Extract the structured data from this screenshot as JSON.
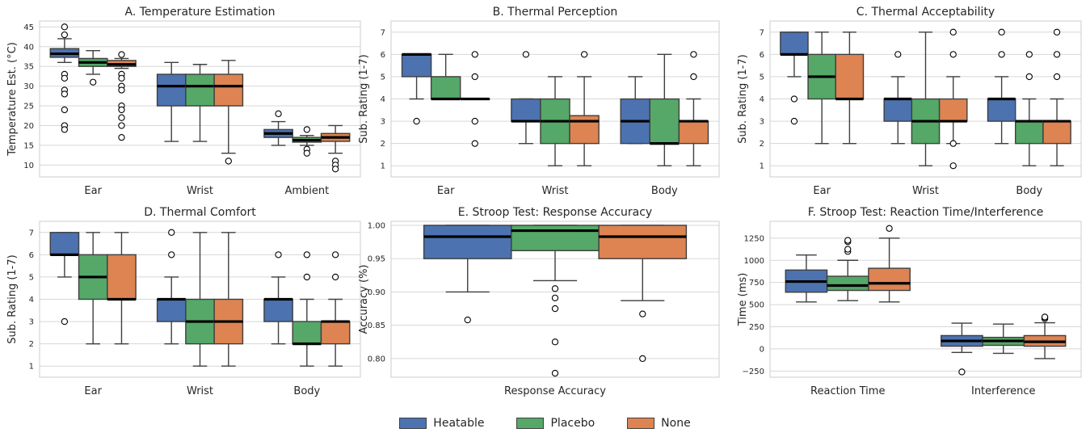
{
  "colors": {
    "Heatable": "#4c72b0",
    "Placebo": "#55a868",
    "None": "#dd8452"
  },
  "legend": [
    {
      "name": "Heatable",
      "color": "#4c72b0"
    },
    {
      "name": "Placebo",
      "color": "#55a868"
    },
    {
      "name": "None",
      "color": "#dd8452"
    }
  ],
  "chart_data": [
    {
      "type": "box",
      "title": "A. Temperature Estimation",
      "ylabel": "Temperature Est. (°C)",
      "ylim": [
        7,
        46.5
      ],
      "yticks": [
        10,
        15,
        20,
        25,
        30,
        35,
        40,
        45
      ],
      "grid": true,
      "categories": [
        "Ear",
        "Wrist",
        "Ambient"
      ],
      "series": [
        {
          "name": "Heatable",
          "boxes": [
            {
              "whislo": 36,
              "q1": 37.3,
              "med": 38.2,
              "q3": 39.5,
              "whishi": 42,
              "fliers": [
                43,
                45,
                33,
                32,
                29,
                28,
                24,
                20,
                19
              ]
            },
            {
              "whislo": 16,
              "q1": 25,
              "med": 30,
              "q3": 33,
              "whishi": 36,
              "fliers": []
            },
            {
              "whislo": 15,
              "q1": 17,
              "med": 18,
              "q3": 19,
              "whishi": 21,
              "fliers": [
                23
              ]
            }
          ]
        },
        {
          "name": "Placebo",
          "boxes": [
            {
              "whislo": 33,
              "q1": 35,
              "med": 36,
              "q3": 37,
              "whishi": 39,
              "fliers": [
                31
              ]
            },
            {
              "whislo": 16,
              "q1": 25,
              "med": 30,
              "q3": 33,
              "whishi": 35.5,
              "fliers": []
            },
            {
              "whislo": 15,
              "q1": 15.8,
              "med": 16.3,
              "q3": 17,
              "whishi": 17.5,
              "fliers": [
                19,
                14,
                13
              ]
            }
          ]
        },
        {
          "name": "None",
          "boxes": [
            {
              "whislo": 34.5,
              "q1": 35,
              "med": 35.5,
              "q3": 36.5,
              "whishi": 37,
              "fliers": [
                38,
                33,
                32,
                30,
                29,
                25,
                24,
                22,
                20,
                17
              ]
            },
            {
              "whislo": 13,
              "q1": 25,
              "med": 30,
              "q3": 33,
              "whishi": 36.5,
              "fliers": [
                11
              ]
            },
            {
              "whislo": 13,
              "q1": 16,
              "med": 17,
              "q3": 18,
              "whishi": 20,
              "fliers": [
                11,
                10,
                9
              ]
            }
          ]
        }
      ]
    },
    {
      "type": "box",
      "title": "B. Thermal Perception",
      "ylabel": "Sub. Rating (1-7)",
      "ylim": [
        0.5,
        7.5
      ],
      "yticks": [
        1,
        2,
        3,
        4,
        5,
        6,
        7
      ],
      "grid": true,
      "categories": [
        "Ear",
        "Wrist",
        "Body"
      ],
      "series": [
        {
          "name": "Heatable",
          "boxes": [
            {
              "whislo": 4,
              "q1": 5,
              "med": 6,
              "q3": 6,
              "whishi": 6,
              "fliers": [
                3
              ]
            },
            {
              "whislo": 2,
              "q1": 3,
              "med": 3,
              "q3": 4,
              "whishi": 4,
              "fliers": [
                6
              ]
            },
            {
              "whislo": 2,
              "q1": 2,
              "med": 3,
              "q3": 4,
              "whishi": 5,
              "fliers": []
            }
          ]
        },
        {
          "name": "Placebo",
          "boxes": [
            {
              "whislo": 4,
              "q1": 4,
              "med": 4,
              "q3": 5,
              "whishi": 6,
              "fliers": []
            },
            {
              "whislo": 1,
              "q1": 2,
              "med": 3,
              "q3": 4,
              "whishi": 5,
              "fliers": []
            },
            {
              "whislo": 1,
              "q1": 2,
              "med": 2,
              "q3": 4,
              "whishi": 6,
              "fliers": []
            }
          ]
        },
        {
          "name": "None",
          "boxes": [
            {
              "whislo": 4,
              "q1": 4,
              "med": 4,
              "q3": 4,
              "whishi": 4,
              "fliers": [
                6,
                5,
                3,
                2
              ]
            },
            {
              "whislo": 1,
              "q1": 2,
              "med": 3,
              "q3": 3.25,
              "whishi": 5,
              "fliers": [
                6
              ]
            },
            {
              "whislo": 1,
              "q1": 2,
              "med": 3,
              "q3": 3,
              "whishi": 4,
              "fliers": [
                6,
                5
              ]
            }
          ]
        }
      ]
    },
    {
      "type": "box",
      "title": "C. Thermal Acceptability",
      "ylabel": "Sub. Rating (1-7)",
      "ylim": [
        0.5,
        7.5
      ],
      "yticks": [
        1,
        2,
        3,
        4,
        5,
        6,
        7
      ],
      "grid": true,
      "categories": [
        "Ear",
        "Wrist",
        "Body"
      ],
      "series": [
        {
          "name": "Heatable",
          "boxes": [
            {
              "whislo": 5,
              "q1": 6,
              "med": 6,
              "q3": 7,
              "whishi": 7,
              "fliers": [
                4,
                3
              ]
            },
            {
              "whislo": 2,
              "q1": 3,
              "med": 4,
              "q3": 4,
              "whishi": 5,
              "fliers": [
                6
              ]
            },
            {
              "whislo": 2,
              "q1": 3,
              "med": 4,
              "q3": 4,
              "whishi": 5,
              "fliers": [
                7,
                6
              ]
            }
          ]
        },
        {
          "name": "Placebo",
          "boxes": [
            {
              "whislo": 2,
              "q1": 4,
              "med": 5,
              "q3": 6,
              "whishi": 7,
              "fliers": []
            },
            {
              "whislo": 1,
              "q1": 2,
              "med": 3,
              "q3": 4,
              "whishi": 7,
              "fliers": []
            },
            {
              "whislo": 1,
              "q1": 2,
              "med": 3,
              "q3": 3,
              "whishi": 4,
              "fliers": [
                6,
                5
              ]
            }
          ]
        },
        {
          "name": "None",
          "boxes": [
            {
              "whislo": 2,
              "q1": 4,
              "med": 4,
              "q3": 6,
              "whishi": 7,
              "fliers": []
            },
            {
              "whislo": 2,
              "q1": 3,
              "med": 3,
              "q3": 4,
              "whishi": 5,
              "fliers": [
                7,
                6,
                2,
                1
              ]
            },
            {
              "whislo": 1,
              "q1": 2,
              "med": 3,
              "q3": 3,
              "whishi": 4,
              "fliers": [
                7,
                6,
                5
              ]
            }
          ]
        }
      ]
    },
    {
      "type": "box",
      "title": "D. Thermal Comfort",
      "ylabel": "Sub. Rating (1-7)",
      "ylim": [
        0.5,
        7.5
      ],
      "yticks": [
        1,
        2,
        3,
        4,
        5,
        6,
        7
      ],
      "grid": true,
      "categories": [
        "Ear",
        "Wrist",
        "Body"
      ],
      "series": [
        {
          "name": "Heatable",
          "boxes": [
            {
              "whislo": 5,
              "q1": 6,
              "med": 6,
              "q3": 7,
              "whishi": 7,
              "fliers": [
                3
              ]
            },
            {
              "whislo": 2,
              "q1": 3,
              "med": 4,
              "q3": 4,
              "whishi": 5,
              "fliers": [
                7,
                6
              ]
            },
            {
              "whislo": 2,
              "q1": 3,
              "med": 4,
              "q3": 4,
              "whishi": 5,
              "fliers": [
                6
              ]
            }
          ]
        },
        {
          "name": "Placebo",
          "boxes": [
            {
              "whislo": 2,
              "q1": 4,
              "med": 5,
              "q3": 6,
              "whishi": 7,
              "fliers": []
            },
            {
              "whislo": 1,
              "q1": 2,
              "med": 3,
              "q3": 4,
              "whishi": 7,
              "fliers": []
            },
            {
              "whislo": 1,
              "q1": 2,
              "med": 2,
              "q3": 3,
              "whishi": 4,
              "fliers": [
                6,
                5
              ]
            }
          ]
        },
        {
          "name": "None",
          "boxes": [
            {
              "whislo": 2,
              "q1": 4,
              "med": 4,
              "q3": 6,
              "whishi": 7,
              "fliers": []
            },
            {
              "whislo": 1,
              "q1": 2,
              "med": 3,
              "q3": 4,
              "whishi": 7,
              "fliers": []
            },
            {
              "whislo": 1,
              "q1": 2,
              "med": 3,
              "q3": 3,
              "whishi": 4,
              "fliers": [
                6,
                5
              ]
            }
          ]
        }
      ]
    },
    {
      "type": "box",
      "title": "E. Stroop Test: Response Accuracy",
      "ylabel": "Accuracy (%)",
      "ylim": [
        0.772,
        1.006
      ],
      "yticks": [
        0.8,
        0.85,
        0.9,
        0.95,
        1.0
      ],
      "yticklabels": [
        "0.80",
        "0.85",
        "0.90",
        "0.95",
        "1.00"
      ],
      "grid": true,
      "categories": [
        "Response Accuracy"
      ],
      "series": [
        {
          "name": "Heatable",
          "boxes": [
            {
              "whislo": 0.9,
              "q1": 0.95,
              "med": 0.983,
              "q3": 1.0,
              "whishi": 1.0,
              "fliers": [
                0.858
              ]
            }
          ]
        },
        {
          "name": "Placebo",
          "boxes": [
            {
              "whislo": 0.917,
              "q1": 0.962,
              "med": 0.992,
              "q3": 1.0,
              "whishi": 1.0,
              "fliers": [
                0.905,
                0.891,
                0.875,
                0.825,
                0.778
              ]
            }
          ]
        },
        {
          "name": "None",
          "boxes": [
            {
              "whislo": 0.887,
              "q1": 0.95,
              "med": 0.983,
              "q3": 1.0,
              "whishi": 1.0,
              "fliers": [
                0.867,
                0.8
              ]
            }
          ]
        }
      ]
    },
    {
      "type": "box",
      "title": "F. Stroop Test: Reaction Time/Interference",
      "ylabel": "Time (ms)",
      "ylim": [
        -320,
        1440
      ],
      "yticks": [
        -250,
        0,
        250,
        500,
        750,
        1000,
        1250
      ],
      "grid": true,
      "categories": [
        "Reaction Time",
        "Interference"
      ],
      "series": [
        {
          "name": "Heatable",
          "boxes": [
            {
              "whislo": 530,
              "q1": 640,
              "med": 760,
              "q3": 890,
              "whishi": 1060,
              "fliers": []
            },
            {
              "whislo": -40,
              "q1": 30,
              "med": 90,
              "q3": 150,
              "whishi": 290,
              "fliers": [
                -260
              ]
            }
          ]
        },
        {
          "name": "Placebo",
          "boxes": [
            {
              "whislo": 545,
              "q1": 660,
              "med": 715,
              "q3": 820,
              "whishi": 1000,
              "fliers": [
                1100,
                1125,
                1210,
                1225
              ]
            },
            {
              "whislo": -50,
              "q1": 40,
              "med": 90,
              "q3": 130,
              "whishi": 280,
              "fliers": []
            }
          ]
        },
        {
          "name": "None",
          "boxes": [
            {
              "whislo": 530,
              "q1": 660,
              "med": 740,
              "q3": 910,
              "whishi": 1250,
              "fliers": [
                1360
              ]
            },
            {
              "whislo": -110,
              "q1": 30,
              "med": 80,
              "q3": 150,
              "whishi": 295,
              "fliers": [
                340,
                355,
                360
              ]
            }
          ]
        }
      ]
    }
  ]
}
